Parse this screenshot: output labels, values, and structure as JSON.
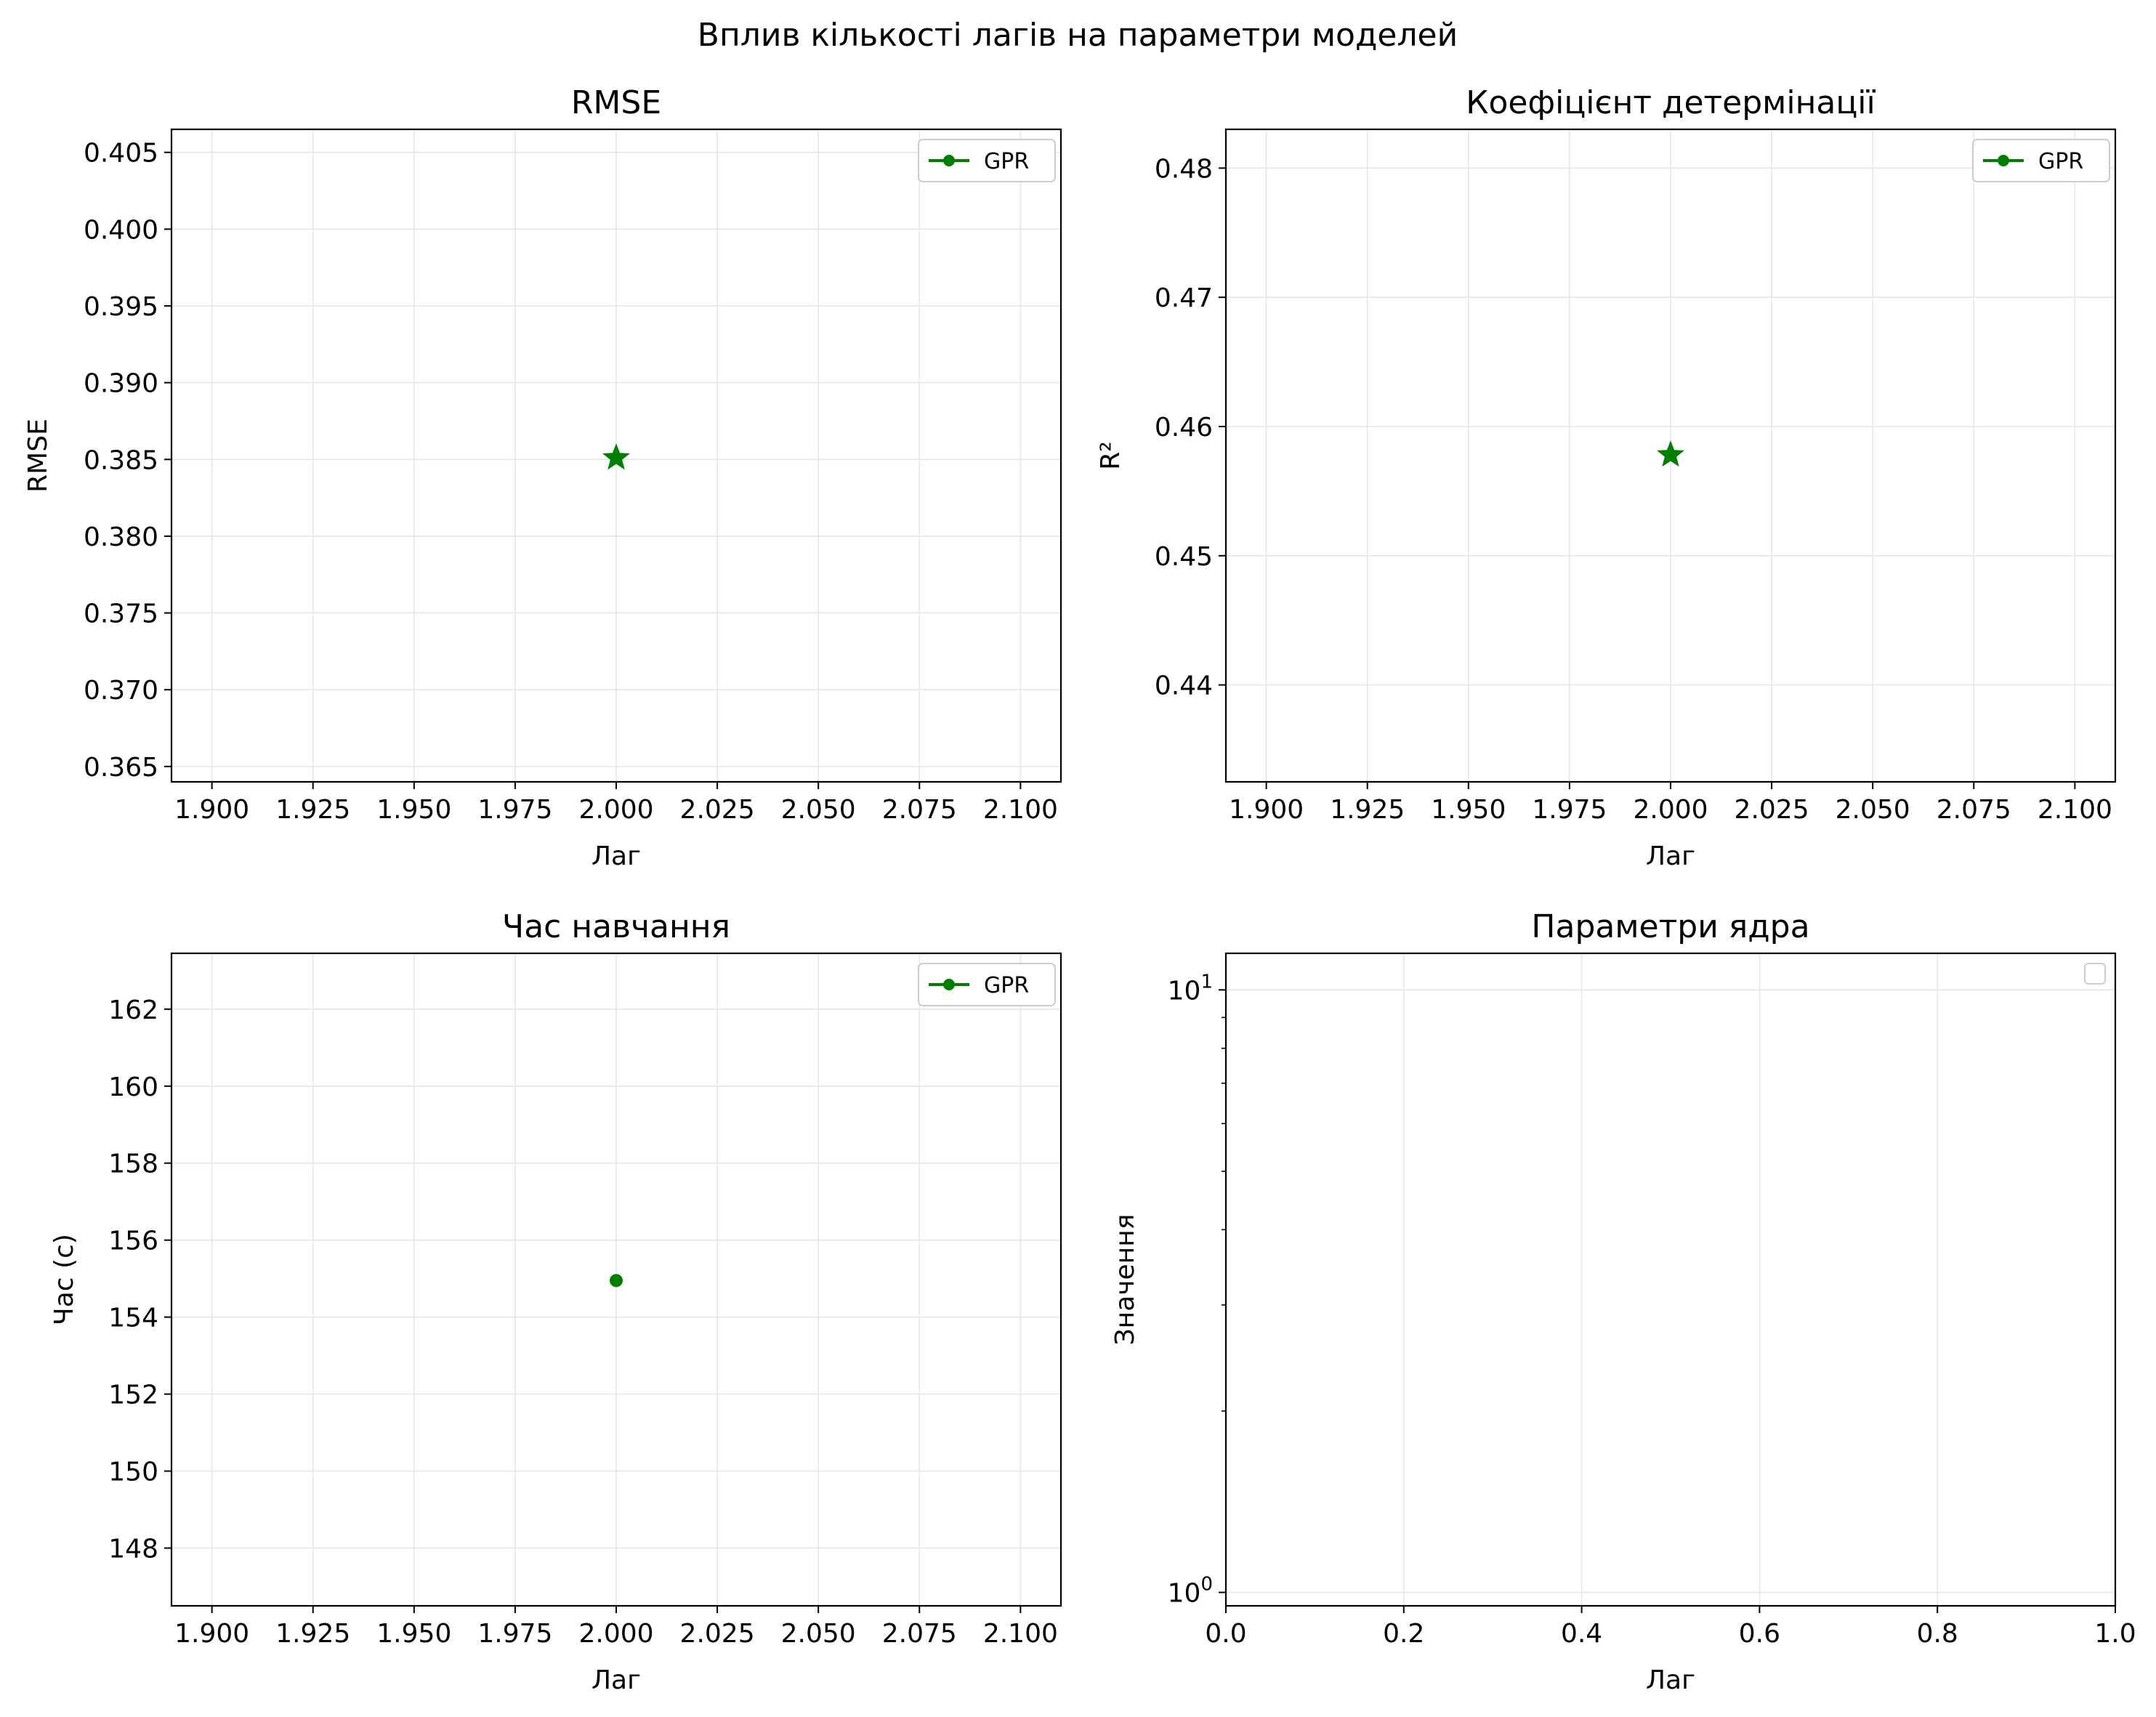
{
  "figure": {
    "title": "Вплив кількості лагів на параметри моделей"
  },
  "colors": {
    "series": "#008000",
    "grid": "#e6e6e6",
    "axes": "#000000",
    "legend_border": "#cccccc"
  },
  "chart_data": [
    {
      "id": "rmse",
      "type": "scatter",
      "title": "RMSE",
      "xlabel": "Лаг",
      "ylabel": "RMSE",
      "xlim": [
        1.89,
        2.11
      ],
      "ylim": [
        0.364,
        0.4065
      ],
      "xticks": [
        1.9,
        1.925,
        1.95,
        1.975,
        2.0,
        2.025,
        2.05,
        2.075,
        2.1
      ],
      "xticklabels": [
        "1.900",
        "1.925",
        "1.950",
        "1.975",
        "2.000",
        "2.025",
        "2.050",
        "2.075",
        "2.100"
      ],
      "yticks": [
        0.365,
        0.37,
        0.375,
        0.38,
        0.385,
        0.39,
        0.395,
        0.4,
        0.405
      ],
      "yticklabels": [
        "0.365",
        "0.370",
        "0.375",
        "0.380",
        "0.385",
        "0.390",
        "0.395",
        "0.400",
        "0.405"
      ],
      "grid": true,
      "legend": {
        "position": "upper right",
        "entries": [
          "GPR"
        ]
      },
      "series": [
        {
          "name": "GPR",
          "color": "#008000",
          "marker": "dot",
          "line": true,
          "points": [
            {
              "x": 2.0,
              "y": null
            }
          ]
        }
      ],
      "highlight": {
        "x": 2.0,
        "y": 0.3851,
        "marker": "star"
      }
    },
    {
      "id": "r2",
      "type": "scatter",
      "title": "Коефіцієнт детермінації",
      "xlabel": "Лаг",
      "ylabel": "R²",
      "xlim": [
        1.89,
        2.11
      ],
      "ylim": [
        0.4325,
        0.483
      ],
      "xticks": [
        1.9,
        1.925,
        1.95,
        1.975,
        2.0,
        2.025,
        2.05,
        2.075,
        2.1
      ],
      "xticklabels": [
        "1.900",
        "1.925",
        "1.950",
        "1.975",
        "2.000",
        "2.025",
        "2.050",
        "2.075",
        "2.100"
      ],
      "yticks": [
        0.44,
        0.45,
        0.46,
        0.47,
        0.48
      ],
      "yticklabels": [
        "0.44",
        "0.45",
        "0.46",
        "0.47",
        "0.48"
      ],
      "grid": true,
      "legend": {
        "position": "upper right",
        "entries": [
          "GPR"
        ]
      },
      "series": [
        {
          "name": "GPR",
          "color": "#008000",
          "marker": "dot",
          "line": true,
          "points": [
            {
              "x": 2.0,
              "y": null
            }
          ]
        }
      ],
      "highlight": {
        "x": 2.0,
        "y": 0.4578,
        "marker": "star"
      }
    },
    {
      "id": "time",
      "type": "scatter",
      "title": "Час навчання",
      "xlabel": "Лаг",
      "ylabel": "Час (с)",
      "xlim": [
        1.89,
        2.11
      ],
      "ylim": [
        146.5,
        163.45
      ],
      "xticks": [
        1.9,
        1.925,
        1.95,
        1.975,
        2.0,
        2.025,
        2.05,
        2.075,
        2.1
      ],
      "xticklabels": [
        "1.900",
        "1.925",
        "1.950",
        "1.975",
        "2.000",
        "2.025",
        "2.050",
        "2.075",
        "2.100"
      ],
      "yticks": [
        148,
        150,
        152,
        154,
        156,
        158,
        160,
        162
      ],
      "yticklabels": [
        "148",
        "150",
        "152",
        "154",
        "156",
        "158",
        "160",
        "162"
      ],
      "grid": true,
      "legend": {
        "position": "upper right",
        "entries": [
          "GPR"
        ]
      },
      "series": [
        {
          "name": "GPR",
          "color": "#008000",
          "marker": "dot",
          "line": true,
          "points": [
            {
              "x": 2.0,
              "y": 154.95
            }
          ]
        }
      ]
    },
    {
      "id": "kernel",
      "type": "line",
      "title": "Параметри ядра",
      "xlabel": "Лаг",
      "ylabel": "Значення",
      "yscale": "log",
      "xlim": [
        0,
        1
      ],
      "ylim": [
        0.95,
        11.5
      ],
      "xticks": [
        0,
        0.2,
        0.4,
        0.6,
        0.8,
        1.0
      ],
      "xticklabels": [
        "0.0",
        "0.2",
        "0.4",
        "0.6",
        "0.8",
        "1.0"
      ],
      "yticks": [
        1,
        10
      ],
      "ytick_base": "10",
      "ytick_exponents": [
        "0",
        "1"
      ],
      "yminor": [
        2,
        3,
        4,
        5,
        6,
        7,
        8,
        9
      ],
      "grid": true,
      "legend": {
        "position": "upper right",
        "entries": []
      },
      "series": []
    }
  ]
}
